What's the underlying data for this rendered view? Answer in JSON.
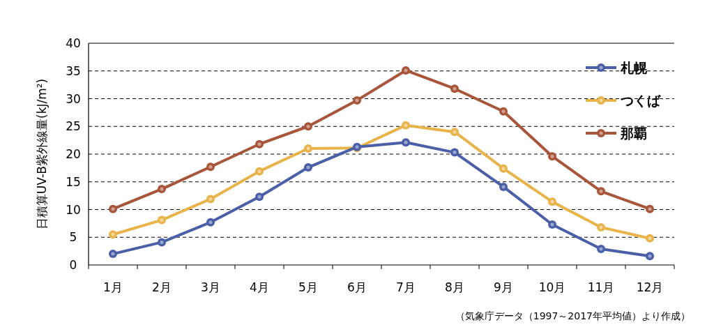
{
  "chart_data": {
    "type": "line",
    "ylabel": "日積算UV-B紫外線量(kJ/m²)",
    "categories": [
      "1月",
      "2月",
      "3月",
      "4月",
      "5月",
      "6月",
      "7月",
      "8月",
      "9月",
      "10月",
      "11月",
      "12月"
    ],
    "series": [
      {
        "name": "札幌",
        "color": "#4a5fa8",
        "values": [
          2.0,
          4.1,
          7.7,
          12.3,
          17.6,
          21.3,
          22.1,
          20.3,
          14.1,
          7.3,
          2.9,
          1.6
        ]
      },
      {
        "name": "つくば",
        "color": "#e8b44a",
        "values": [
          5.5,
          8.1,
          11.9,
          16.9,
          21.0,
          21.1,
          25.2,
          24.0,
          17.4,
          11.4,
          6.8,
          4.8
        ]
      },
      {
        "name": "那覇",
        "color": "#a8553a",
        "values": [
          10.1,
          13.7,
          17.7,
          21.8,
          25.0,
          29.7,
          35.1,
          31.8,
          27.7,
          19.6,
          13.3,
          10.1
        ]
      }
    ],
    "ylim": [
      0,
      40
    ],
    "yticks": [
      0,
      5,
      10,
      15,
      20,
      25,
      30,
      35,
      40
    ],
    "grid": "y",
    "legend": "top right",
    "marker": "circle",
    "line_style": "solid",
    "annotations": [
      "（気象庁データ（1997～2017年平均値）より作成）"
    ]
  }
}
